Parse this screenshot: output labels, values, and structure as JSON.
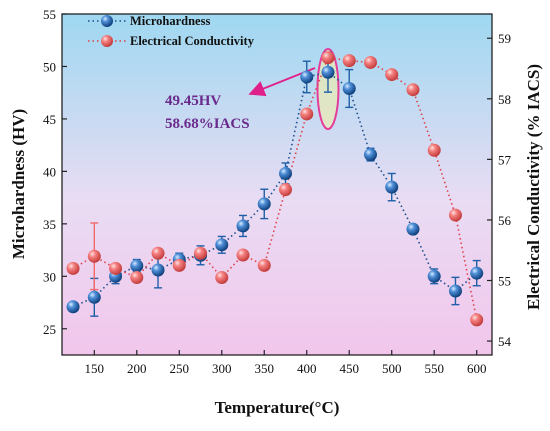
{
  "chart_data": {
    "type": "line",
    "xlabel": "Temperature(°C)",
    "ylabel_left": "Microhardness (HV)",
    "ylabel_right": "Electrical Conductivity (% IACS)",
    "x_ticks": [
      150,
      200,
      250,
      300,
      350,
      400,
      450,
      500,
      550,
      600
    ],
    "xlim": [
      112,
      618
    ],
    "ylim_left": [
      22.5,
      55
    ],
    "ylim_right": [
      53.77,
      59.4
    ],
    "y_left_ticks": [
      25,
      30,
      35,
      40,
      45,
      50,
      55
    ],
    "y_right_ticks": [
      54,
      55,
      56,
      57,
      58,
      59
    ],
    "legend_position": "top-left",
    "background_gradient": [
      "#9fd8f1",
      "#e9dcf3",
      "#f2c6ec"
    ],
    "series": [
      {
        "name": "Microhardness",
        "axis": "left",
        "color": "#1f5fa8",
        "line_color": "#1f4e8c",
        "marker": "sphere",
        "x": [
          125,
          150,
          175,
          200,
          225,
          250,
          275,
          300,
          325,
          350,
          375,
          400,
          425,
          450,
          475,
          500,
          525,
          550,
          575,
          600
        ],
        "values": [
          27.1,
          28.0,
          30.0,
          31.0,
          30.6,
          31.6,
          32.0,
          33.0,
          34.8,
          36.9,
          39.8,
          49.0,
          49.45,
          47.9,
          41.6,
          38.5,
          34.5,
          30.0,
          28.6,
          30.3
        ],
        "error": [
          0,
          1.8,
          0.7,
          0.6,
          1.7,
          0.6,
          0.9,
          0.8,
          1.0,
          1.4,
          1.0,
          1.5,
          1.9,
          1.8,
          0.6,
          1.3,
          0,
          0.7,
          1.3,
          1.2
        ]
      },
      {
        "name": "Electrical Conductivity",
        "axis": "right",
        "color": "#f06a6a",
        "line_color": "#e0404a",
        "marker": "sphere",
        "x": [
          125,
          150,
          175,
          200,
          225,
          250,
          275,
          300,
          325,
          350,
          375,
          400,
          425,
          450,
          475,
          500,
          525,
          550,
          575,
          600
        ],
        "values": [
          55.2,
          55.4,
          55.2,
          55.05,
          55.45,
          55.25,
          55.45,
          55.05,
          55.42,
          55.25,
          56.5,
          57.75,
          58.68,
          58.63,
          58.6,
          58.4,
          58.15,
          57.15,
          56.08,
          54.35
        ],
        "error": [
          0,
          0.55,
          0,
          0,
          0,
          0,
          0,
          0,
          0,
          0,
          0,
          0,
          0,
          0,
          0,
          0,
          0,
          0,
          0,
          0
        ]
      }
    ],
    "annotation": {
      "lines": [
        "49.45HV",
        "58.68%IACS"
      ],
      "color": "#6a2a8c",
      "arrow_color": "#e0208a",
      "highlight_x": 425
    }
  }
}
